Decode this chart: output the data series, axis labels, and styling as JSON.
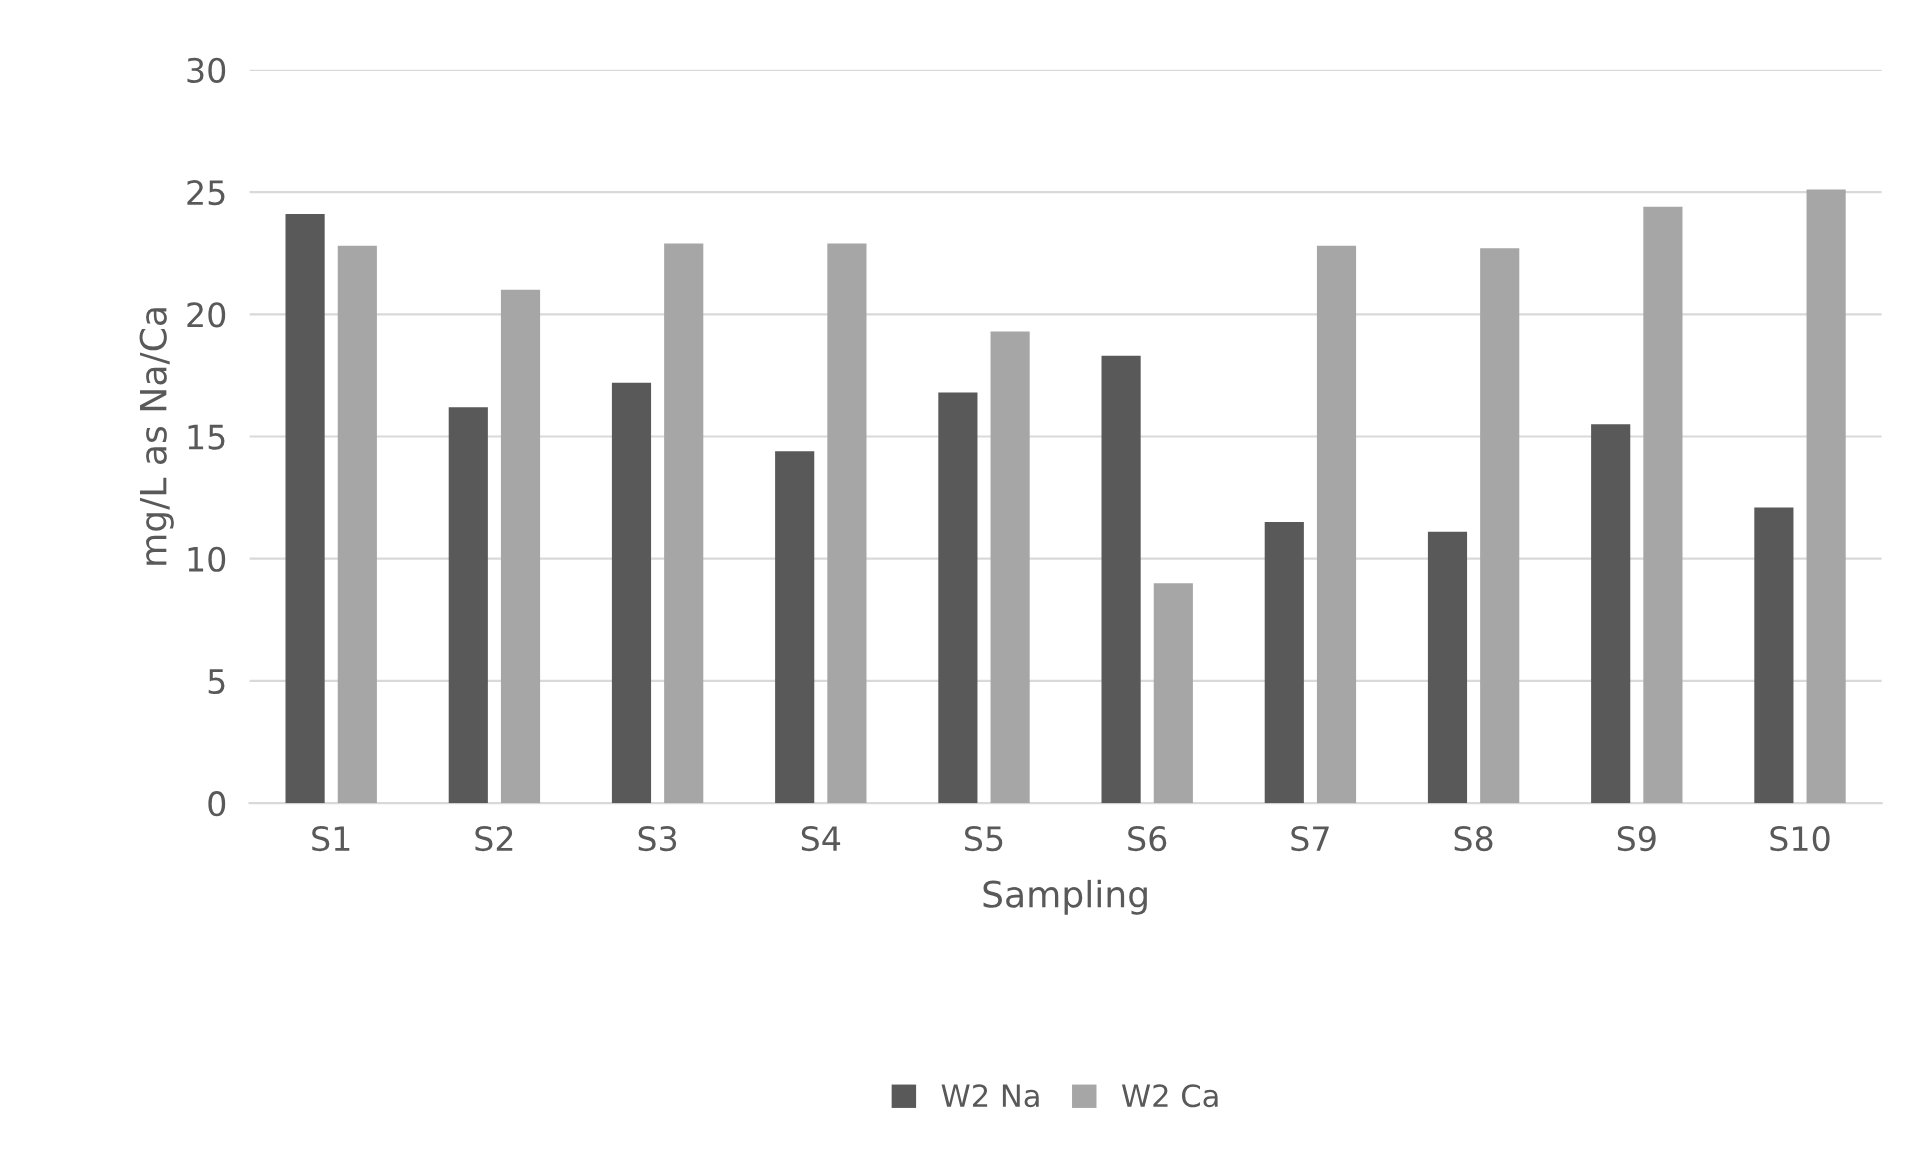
{
  "chart_data": {
    "type": "bar",
    "xlabel": "Sampling",
    "ylabel": "mg/L as Na/Ca",
    "categories": [
      "S1",
      "S2",
      "S3",
      "S4",
      "S5",
      "S6",
      "S7",
      "S8",
      "S9",
      "S10"
    ],
    "series": [
      {
        "name": "W2 Na",
        "color": "#595959",
        "values": [
          24.1,
          16.2,
          17.2,
          14.4,
          16.8,
          18.3,
          11.5,
          11.1,
          15.5,
          12.1
        ]
      },
      {
        "name": "W2 Ca",
        "color": "#a6a6a6",
        "values": [
          22.8,
          21.0,
          22.9,
          22.9,
          19.3,
          9.0,
          22.8,
          22.7,
          24.4,
          25.1
        ]
      }
    ],
    "ylim": [
      0,
      30
    ],
    "yticks": [
      0,
      5,
      10,
      15,
      20,
      25,
      30
    ],
    "grid": "y",
    "legend": "bottom"
  }
}
